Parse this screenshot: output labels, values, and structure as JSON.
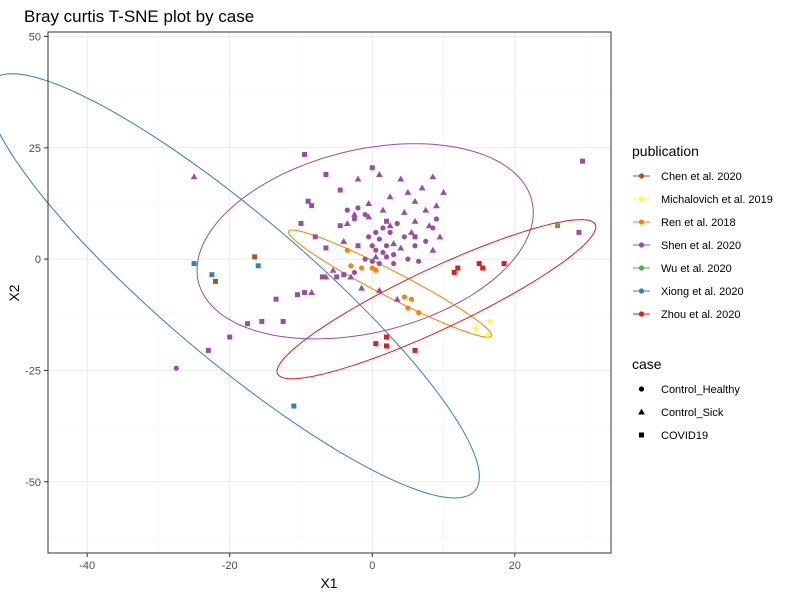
{
  "chart_data": {
    "type": "scatter",
    "title": "Bray curtis T-SNE plot by case",
    "xlabel": "X1",
    "ylabel": "X2",
    "xlim": [
      -45.5,
      33.5
    ],
    "ylim": [
      -66,
      51
    ],
    "xticks": [
      -40,
      -20,
      0,
      20
    ],
    "yticks": [
      -50,
      -25,
      0,
      25,
      50
    ],
    "grid": true,
    "legend_placement": "right",
    "legends": {
      "publication": {
        "title": "publication",
        "entries": [
          {
            "label": "Chen et al. 2020",
            "color": "#A6522B"
          },
          {
            "label": "Michalovich et al. 2019",
            "color": "#FFFF33"
          },
          {
            "label": "Ren et al. 2018",
            "color": "#FF7F00"
          },
          {
            "label": "Shen et al. 2020",
            "color": "#984EA3"
          },
          {
            "label": "Wu et al. 2020",
            "color": "#4DAF4A"
          },
          {
            "label": "Xiong et al. 2020",
            "color": "#377EB8"
          },
          {
            "label": "Zhou et al. 2020",
            "color": "#E41A1C"
          }
        ]
      },
      "case": {
        "title": "case",
        "entries": [
          {
            "label": "Control_Healthy",
            "shape": "circle"
          },
          {
            "label": "Control_Sick",
            "shape": "triangle"
          },
          {
            "label": "COVID19",
            "shape": "square"
          }
        ]
      }
    },
    "ellipses": [
      {
        "publication": "Xiong et al. 2020",
        "color": "#377EB8",
        "center": [
          -19.5,
          -6
        ],
        "semi_major": 57.5,
        "semi_minor": 12.5,
        "angle_deg": 125
      },
      {
        "publication": "Shen et al. 2020",
        "color": "#984EA3",
        "center": [
          -1,
          4
        ],
        "semi_major": 26,
        "semi_minor": 19,
        "angle_deg": 38
      },
      {
        "publication": "Ren et al. 2018",
        "color": "#FF7F00",
        "center": [
          2.5,
          -5.5
        ],
        "semi_major": 18.5,
        "semi_minor": 2.5,
        "angle_deg": -40
      },
      {
        "publication": "Zhou et al. 2020",
        "color": "#E41A1C",
        "center": [
          9,
          -9
        ],
        "semi_major": 28,
        "semi_minor": 6,
        "angle_deg": 38
      }
    ],
    "series": [
      {
        "publication": "Chen et al. 2020",
        "case": "COVID19",
        "color": "#A6522B",
        "points": [
          [
            -16.5,
            0.5
          ],
          [
            -22,
            -5
          ]
        ]
      },
      {
        "publication": "Michalovich et al. 2019",
        "case": "Control_Healthy",
        "color": "#FFFF33",
        "points": [
          [
            14.5,
            -15.5
          ],
          [
            16.2,
            -17
          ],
          [
            16.5,
            -14
          ]
        ]
      },
      {
        "publication": "Ren et al. 2018",
        "case": "Control_Healthy",
        "color": "#FF7F00",
        "points": [
          [
            -3.5,
            2
          ],
          [
            -3,
            -1.5
          ],
          [
            -1.5,
            -2
          ],
          [
            0,
            -2
          ],
          [
            0.5,
            -2.5
          ],
          [
            4.5,
            -8.5
          ],
          [
            5.5,
            -9
          ],
          [
            5,
            -11
          ],
          [
            6.5,
            -12
          ]
        ]
      },
      {
        "publication": "Shen et al. 2020",
        "case": "Control_Healthy",
        "color": "#984EA3",
        "points": [
          [
            -3.5,
            11
          ],
          [
            -2.5,
            9
          ],
          [
            -2,
            11.5
          ],
          [
            -1,
            10
          ],
          [
            -0.5,
            5
          ],
          [
            0,
            3
          ],
          [
            0.5,
            6
          ],
          [
            0.5,
            2
          ],
          [
            1,
            4.5
          ],
          [
            1.5,
            7
          ],
          [
            2,
            3
          ],
          [
            2.5,
            6
          ],
          [
            3,
            1
          ],
          [
            3.5,
            8
          ],
          [
            4.5,
            5
          ],
          [
            5,
            0
          ],
          [
            6,
            3
          ],
          [
            7.5,
            4
          ],
          [
            8.5,
            7
          ],
          [
            9,
            9
          ],
          [
            -1,
            0
          ],
          [
            0,
            -0.5
          ],
          [
            1,
            -1
          ],
          [
            2,
            0.5
          ],
          [
            3,
            -1
          ],
          [
            -2.5,
            -3
          ],
          [
            1.5,
            1.5
          ],
          [
            6.5,
            -0.5
          ],
          [
            -27.5,
            -24.5
          ]
        ]
      },
      {
        "publication": "Shen et al. 2020",
        "case": "Control_Sick",
        "color": "#984EA3",
        "points": [
          [
            -25,
            18.5
          ],
          [
            -2,
            18
          ],
          [
            1,
            19
          ],
          [
            4,
            18
          ],
          [
            8.5,
            18.5
          ],
          [
            5,
            15
          ],
          [
            7,
            16
          ],
          [
            10,
            15
          ],
          [
            6,
            13
          ],
          [
            9,
            12
          ],
          [
            2.5,
            14
          ],
          [
            -2.5,
            10
          ],
          [
            -0.5,
            9.5
          ],
          [
            4.5,
            10.5
          ],
          [
            7.5,
            11
          ],
          [
            8,
            7.5
          ],
          [
            -5.5,
            -2.5
          ],
          [
            -6.5,
            -4
          ],
          [
            -3,
            -4
          ],
          [
            -1.5,
            -6.5
          ],
          [
            1,
            -7
          ],
          [
            3.5,
            -9
          ],
          [
            -8.5,
            -7.5
          ],
          [
            -3.5,
            8
          ],
          [
            1.5,
            11
          ],
          [
            4,
            2.5
          ],
          [
            5.5,
            6
          ],
          [
            9.5,
            5
          ],
          [
            -0.5,
            12.5
          ],
          [
            2.5,
            7.5
          ],
          [
            8.5,
            2
          ],
          [
            0.5,
            0.5
          ],
          [
            -4,
            4
          ],
          [
            6,
            8.5
          ],
          [
            3,
            3.5
          ]
        ]
      },
      {
        "publication": "Shen et al. 2020",
        "case": "COVID19",
        "color": "#984EA3",
        "points": [
          [
            -9.5,
            23.5
          ],
          [
            -6.5,
            19
          ],
          [
            0,
            20.5
          ],
          [
            -9,
            13
          ],
          [
            -8.5,
            12
          ],
          [
            -10,
            8
          ],
          [
            -6.5,
            2.5
          ],
          [
            -7,
            -4
          ],
          [
            -5,
            -4
          ],
          [
            -4,
            -3.5
          ],
          [
            -10.5,
            -8
          ],
          [
            -9.5,
            -7.5
          ],
          [
            -13.5,
            -9
          ],
          [
            -12.5,
            -14
          ],
          [
            -15.5,
            -14
          ],
          [
            -17.5,
            -14.5
          ],
          [
            -20,
            -17.5
          ],
          [
            -23,
            -20.5
          ],
          [
            29.5,
            22
          ],
          [
            29,
            6
          ],
          [
            -8,
            5
          ],
          [
            -4.5,
            15.5
          ],
          [
            2,
            8.5
          ],
          [
            6,
            5
          ],
          [
            -2,
            3
          ],
          [
            -4.5,
            7.5
          ]
        ]
      },
      {
        "publication": "Wu et al. 2020",
        "case": "COVID19",
        "color": "#4DAF4A",
        "points": [
          [
            26,
            7.5
          ]
        ]
      },
      {
        "publication": "Xiong et al. 2020",
        "case": "COVID19",
        "color": "#377EB8",
        "points": [
          [
            -25,
            -1
          ],
          [
            -22.5,
            -3.5
          ],
          [
            -16,
            -1.5
          ],
          [
            -11,
            -33
          ]
        ]
      },
      {
        "publication": "Zhou et al. 2020",
        "case": "COVID19",
        "color": "#E41A1C",
        "points": [
          [
            12,
            -2
          ],
          [
            11.5,
            -3
          ],
          [
            15,
            -1
          ],
          [
            15.5,
            -2
          ],
          [
            18.5,
            -1
          ],
          [
            0.5,
            -19
          ],
          [
            2,
            -17.5
          ],
          [
            2,
            -19.5
          ],
          [
            6,
            -20.5
          ]
        ]
      }
    ]
  }
}
